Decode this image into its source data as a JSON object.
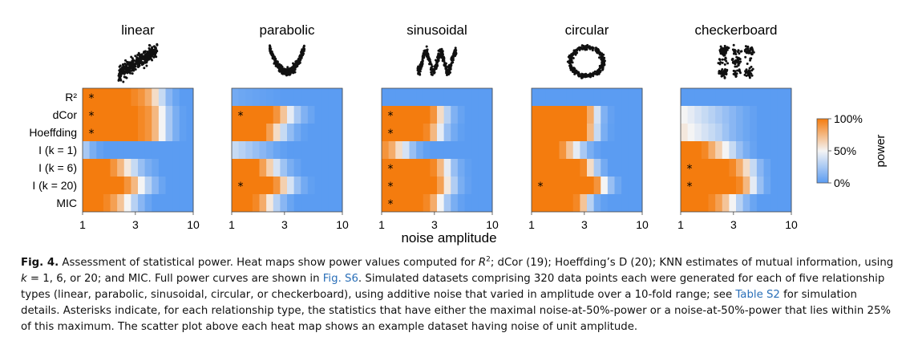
{
  "chart_data": {
    "type": "heatmap",
    "panels": [
      {
        "title": "linear",
        "asterisk_rows": [
          0,
          1,
          2
        ],
        "values": [
          [
            1,
            1,
            1,
            1,
            1,
            1,
            1,
            0.95,
            0.9,
            0.8,
            0.6,
            0.35,
            0.15,
            0.05,
            0,
            0
          ],
          [
            1,
            1,
            1,
            1,
            1,
            1,
            1,
            1,
            0.95,
            0.9,
            0.75,
            0.5,
            0.25,
            0.1,
            0.02,
            0
          ],
          [
            1,
            1,
            1,
            1,
            1,
            1,
            1,
            1,
            0.95,
            0.9,
            0.75,
            0.5,
            0.25,
            0.1,
            0.02,
            0
          ],
          [
            0.25,
            0.1,
            0.03,
            0,
            0,
            0,
            0,
            0,
            0,
            0,
            0,
            0,
            0,
            0,
            0,
            0
          ],
          [
            1,
            1,
            1,
            1,
            0.9,
            0.75,
            0.55,
            0.35,
            0.2,
            0.1,
            0.05,
            0,
            0,
            0,
            0,
            0
          ],
          [
            1,
            1,
            1,
            1,
            1,
            1,
            0.9,
            0.75,
            0.5,
            0.3,
            0.15,
            0.05,
            0,
            0,
            0,
            0
          ],
          [
            1,
            1,
            1,
            0.95,
            0.85,
            0.7,
            0.5,
            0.3,
            0.15,
            0.05,
            0,
            0,
            0,
            0,
            0,
            0
          ]
        ]
      },
      {
        "title": "parabolic",
        "asterisk_rows": [
          1,
          5
        ],
        "values": [
          [
            0.08,
            0.06,
            0.05,
            0.04,
            0.03,
            0.02,
            0.01,
            0,
            0,
            0,
            0,
            0,
            0,
            0,
            0,
            0
          ],
          [
            1,
            1,
            1,
            1,
            1,
            1,
            0.9,
            0.7,
            0.45,
            0.25,
            0.12,
            0.05,
            0,
            0,
            0,
            0
          ],
          [
            1,
            1,
            1,
            1,
            1,
            0.85,
            0.6,
            0.35,
            0.18,
            0.08,
            0.02,
            0,
            0,
            0,
            0,
            0
          ],
          [
            0.35,
            0.3,
            0.25,
            0.2,
            0.15,
            0.1,
            0.05,
            0.02,
            0,
            0,
            0,
            0,
            0,
            0,
            0,
            0
          ],
          [
            1,
            1,
            1,
            1,
            0.85,
            0.65,
            0.4,
            0.22,
            0.1,
            0.04,
            0,
            0,
            0,
            0,
            0,
            0
          ],
          [
            1,
            1,
            1,
            1,
            1,
            1,
            0.9,
            0.65,
            0.4,
            0.2,
            0.08,
            0.02,
            0,
            0,
            0,
            0
          ],
          [
            1,
            1,
            1,
            0.95,
            0.8,
            0.55,
            0.3,
            0.15,
            0.05,
            0,
            0,
            0,
            0,
            0,
            0,
            0
          ]
        ]
      },
      {
        "title": "sinusoidal",
        "asterisk_rows": [
          1,
          2,
          4,
          5,
          6
        ],
        "values": [
          [
            0,
            0,
            0,
            0,
            0,
            0,
            0,
            0,
            0,
            0,
            0,
            0,
            0,
            0,
            0,
            0
          ],
          [
            1,
            1,
            1,
            1,
            1,
            1,
            1,
            0.9,
            0.6,
            0.3,
            0.12,
            0.04,
            0,
            0,
            0,
            0
          ],
          [
            1,
            1,
            1,
            1,
            1,
            1,
            0.95,
            0.75,
            0.45,
            0.2,
            0.08,
            0.02,
            0,
            0,
            0,
            0
          ],
          [
            0.9,
            0.8,
            0.6,
            0.4,
            0.2,
            0.08,
            0.02,
            0,
            0,
            0,
            0,
            0,
            0,
            0,
            0,
            0
          ],
          [
            1,
            1,
            1,
            1,
            1,
            1,
            1,
            0.95,
            0.75,
            0.45,
            0.2,
            0.08,
            0.02,
            0,
            0,
            0
          ],
          [
            1,
            1,
            1,
            1,
            1,
            1,
            1,
            1,
            0.85,
            0.55,
            0.28,
            0.1,
            0.03,
            0,
            0,
            0
          ],
          [
            1,
            1,
            1,
            1,
            1,
            1,
            0.95,
            0.8,
            0.5,
            0.25,
            0.1,
            0.03,
            0,
            0,
            0,
            0
          ]
        ]
      },
      {
        "title": "circular",
        "asterisk_rows": [
          5
        ],
        "values": [
          [
            0,
            0,
            0,
            0,
            0,
            0,
            0,
            0,
            0,
            0,
            0,
            0,
            0,
            0,
            0,
            0
          ],
          [
            1,
            1,
            1,
            1,
            1,
            1,
            1,
            1,
            0.8,
            0.4,
            0.12,
            0.03,
            0,
            0,
            0,
            0
          ],
          [
            1,
            1,
            1,
            1,
            1,
            1,
            1,
            1,
            0.75,
            0.35,
            0.1,
            0.02,
            0,
            0,
            0,
            0
          ],
          [
            1,
            1,
            1,
            1,
            0.9,
            0.7,
            0.45,
            0.25,
            0.1,
            0.03,
            0,
            0,
            0,
            0,
            0,
            0
          ],
          [
            1,
            1,
            1,
            1,
            1,
            1,
            1,
            0.95,
            0.6,
            0.25,
            0.08,
            0,
            0,
            0,
            0,
            0
          ],
          [
            1,
            1,
            1,
            1,
            1,
            1,
            1,
            1,
            1,
            0.9,
            0.5,
            0.2,
            0.06,
            0,
            0,
            0
          ],
          [
            1,
            1,
            1,
            1,
            1,
            1,
            0.95,
            0.7,
            0.3,
            0.08,
            0.02,
            0,
            0,
            0,
            0,
            0
          ]
        ]
      },
      {
        "title": "checkerboard",
        "asterisk_rows": [
          4,
          5
        ],
        "values": [
          [
            0,
            0,
            0,
            0,
            0,
            0,
            0,
            0,
            0,
            0,
            0,
            0,
            0,
            0,
            0,
            0
          ],
          [
            0.5,
            0.45,
            0.4,
            0.35,
            0.3,
            0.25,
            0.2,
            0.15,
            0.1,
            0.06,
            0.03,
            0,
            0,
            0,
            0,
            0
          ],
          [
            0.55,
            0.5,
            0.45,
            0.4,
            0.35,
            0.3,
            0.22,
            0.15,
            0.1,
            0.06,
            0.03,
            0,
            0,
            0,
            0,
            0
          ],
          [
            1,
            1,
            1,
            0.95,
            0.8,
            0.65,
            0.5,
            0.35,
            0.2,
            0.1,
            0.04,
            0,
            0,
            0,
            0,
            0
          ],
          [
            1,
            1,
            1,
            1,
            1,
            1,
            1,
            0.95,
            0.8,
            0.6,
            0.35,
            0.15,
            0.05,
            0,
            0,
            0
          ],
          [
            1,
            1,
            1,
            1,
            1,
            1,
            1,
            1,
            0.95,
            0.75,
            0.45,
            0.2,
            0.06,
            0,
            0,
            0
          ],
          [
            1,
            1,
            1,
            1,
            0.95,
            0.85,
            0.7,
            0.5,
            0.3,
            0.15,
            0.05,
            0,
            0,
            0,
            0,
            0
          ]
        ]
      }
    ],
    "row_labels": [
      "R²",
      "dCor",
      "Hoeffding",
      "I (k = 1)",
      "I (k = 6)",
      "I (k = 20)",
      "MIC"
    ],
    "x_ticks": [
      "1",
      "3",
      "10"
    ],
    "x_tick_values": [
      1,
      3,
      10
    ],
    "x_range": [
      1,
      10
    ],
    "x_scale": "log",
    "xlabel": "noise amplitude",
    "colorbar": {
      "ticks": [
        "100%",
        "50%",
        "0%"
      ],
      "label": "power",
      "low": "#5b9cf2",
      "mid": "#f4f4f4",
      "high": "#f47c0e"
    }
  },
  "caption": {
    "label": "Fig. 4.",
    "parts": [
      {
        "t": "   Assessment of statistical power. Heat maps show power values computed for "
      },
      {
        "t": "R",
        "c": "ital"
      },
      {
        "t": "2",
        "c": "sup"
      },
      {
        "t": "; dCor (19); Hoeffding’s D (20); KNN estimates of mutual information, using "
      },
      {
        "t": "k",
        "c": "ital"
      },
      {
        "t": " = 1, 6, or 20; and MIC. Full power curves are shown in "
      },
      {
        "t": "Fig. S6",
        "c": "link"
      },
      {
        "t": ". Simulated datasets comprising 320 data points each were generated for each of five relationship types (linear, parabolic, sinusoidal, circular, or checkerboard), using additive noise that varied in amplitude over a 10-fold range; see "
      },
      {
        "t": "Table S2",
        "c": "link"
      },
      {
        "t": " for simulation details. Asterisks indicate, for each relationship type, the statistics that have either the maximal noise-at-50%-power or a noise-at-50%-power that lies within 25% of this maximum. The scatter plot above each heat map shows an example dataset having noise of unit amplitude."
      }
    ]
  }
}
